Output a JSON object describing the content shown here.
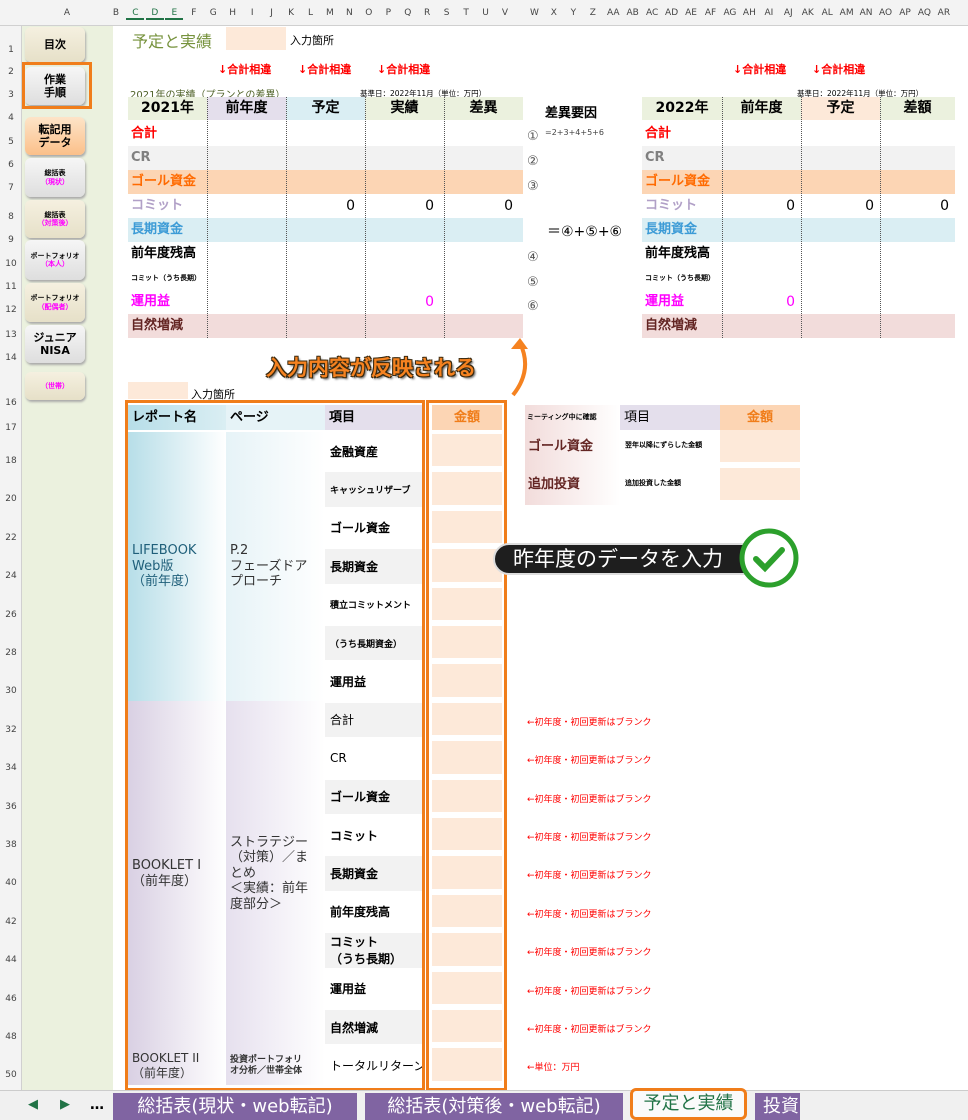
{
  "column_headers": [
    "A",
    "B",
    "C",
    "D",
    "E",
    "F",
    "G",
    "H",
    "I",
    "J",
    "K",
    "L",
    "M",
    "N",
    "O",
    "P",
    "Q",
    "R",
    "S",
    "T",
    "U",
    "V",
    "W",
    "X",
    "Y",
    "Z",
    "AA",
    "AB",
    "AC",
    "AD",
    "AE",
    "AF",
    "AG",
    "AH",
    "AI",
    "AJ",
    "AK",
    "AL",
    "AM",
    "AN",
    "AO",
    "AP",
    "AQ",
    "AR"
  ],
  "row_headers": [
    "1",
    "2",
    "3",
    "4",
    "5",
    "6",
    "7",
    "8",
    "9",
    "10",
    "11",
    "12",
    "13",
    "14",
    "16",
    "17",
    "18",
    "20",
    "22",
    "24",
    "26",
    "28",
    "30",
    "32",
    "34",
    "36",
    "38",
    "40",
    "42",
    "44",
    "46",
    "48",
    "50"
  ],
  "sidebar": [
    {
      "label": "目次",
      "style": "beige"
    },
    {
      "label": "作業\n手順",
      "style": "gray",
      "highlighted": true
    },
    {
      "label": "転記用\nデータ",
      "style": "orange"
    },
    {
      "label": "総括表",
      "sub": "（現状）",
      "style": "gray"
    },
    {
      "label": "総括表",
      "sub": "（対策後）",
      "style": "beige"
    },
    {
      "label": "ポートフォリオ",
      "sub": "（本人）",
      "style": "gray"
    },
    {
      "label": "ポートフォリオ",
      "sub": "（配偶者）",
      "style": "beige"
    },
    {
      "label": "ジュニア\nNISA",
      "style": "gray"
    },
    {
      "label": "",
      "sub": "（世帯）",
      "style": "beige"
    }
  ],
  "sheet": {
    "title": "予定と実績",
    "input_legend": "入力箇所",
    "warnings_left": [
      "↓合計相違",
      "↓合計相違",
      "↓合計相違"
    ],
    "warnings_right": [
      "↓合計相違",
      "↓合計相違"
    ],
    "subtitle_2021": "2021年の実績（プランとの差異）",
    "base_date_left": "基準日：2022年11月（単位：万円）",
    "base_date_right": "基準日：2022年11月（単位：万円）"
  },
  "table2021": {
    "headers": [
      "2021年",
      "前年度",
      "予定",
      "実績",
      "差異"
    ],
    "rows": [
      {
        "label": "合計",
        "color": "#ff0000",
        "bg": "#ffffff",
        "values": [
          "",
          "",
          "",
          ""
        ]
      },
      {
        "label": "CR",
        "color": "#808080",
        "bg": "#f2f2f2",
        "values": [
          "",
          "",
          "",
          ""
        ]
      },
      {
        "label": "ゴール資金",
        "color": "#ff6a00",
        "bg": "#fcd5b4",
        "values": [
          "",
          "",
          "",
          ""
        ]
      },
      {
        "label": "コミット",
        "color": "#b1a0c7",
        "bg": "#ffffff",
        "values": [
          "",
          "0",
          "0",
          "0"
        ]
      },
      {
        "label": "長期資金",
        "color": "#3c9bd6",
        "bg": "#daeef3",
        "values": [
          "",
          "",
          "",
          ""
        ]
      },
      {
        "label": "前年度残高",
        "color": "#000000",
        "bg": "#ffffff",
        "values": [
          "",
          "",
          "",
          ""
        ]
      },
      {
        "label": "コミット（うち長期）",
        "color": "#000000",
        "bg": "#ffffff",
        "small": true,
        "values": [
          "",
          "",
          "",
          ""
        ]
      },
      {
        "label": "運用益",
        "color": "#ff00ff",
        "bg": "#ffffff",
        "values": [
          "",
          "",
          "0",
          ""
        ]
      },
      {
        "label": "自然増減",
        "color": "#632523",
        "bg": "#f2dcdb",
        "values": [
          "",
          "",
          "",
          ""
        ]
      }
    ]
  },
  "factors": {
    "header": "差異要因",
    "markers": [
      "①",
      "②",
      "③",
      "④",
      "⑤",
      "⑥"
    ],
    "formula1": "=2+3+4+5+6",
    "formula2": "＝④+⑤+⑥"
  },
  "table2022": {
    "headers": [
      "2022年",
      "前年度",
      "予定",
      "差額"
    ],
    "rows": [
      {
        "label": "合計",
        "values": [
          "",
          "",
          ""
        ]
      },
      {
        "label": "CR",
        "values": [
          "",
          "",
          ""
        ]
      },
      {
        "label": "ゴール資金",
        "values": [
          "",
          "",
          ""
        ]
      },
      {
        "label": "コミット",
        "values": [
          "0",
          "0",
          "0"
        ]
      },
      {
        "label": "長期資金",
        "values": [
          "",
          "",
          ""
        ]
      },
      {
        "label": "前年度残高",
        "values": [
          "",
          "",
          ""
        ]
      },
      {
        "label": "コミット（うち長期）",
        "values": [
          "",
          "",
          ""
        ]
      },
      {
        "label": "運用益",
        "values": [
          "0",
          "",
          ""
        ]
      },
      {
        "label": "自然増減",
        "values": [
          "",
          "",
          ""
        ]
      }
    ]
  },
  "annotation_reflect": "入力内容が反映される",
  "annotation_input": "昨年度のデータを入力",
  "input_table": {
    "legend": "入力箇所",
    "headers": [
      "レポート名",
      "ページ",
      "項目",
      "金額"
    ],
    "groups": [
      {
        "report": "LIFEBOOK\nWeb版\n（前年度）",
        "page": "P.2\nフェーズドア\nプローチ",
        "rows": 7,
        "color": "#b7dee8"
      },
      {
        "report": "BOOKLET I\n（前年度）",
        "page": "ストラテジー\n（対策）／ま\nとめ\n＜実績：前年\n度部分＞",
        "rows": 9,
        "color": "#d9d0e3"
      },
      {
        "report": "BOOKLET II\n（前年度）",
        "page": "投資ポートフォリ\nオ分析／世帯全体",
        "rows": 1,
        "color": "#d9d0e3"
      }
    ],
    "items": [
      "金融資産",
      "キャッシュリザーブ",
      "ゴール資金",
      "長期資金",
      "積立コミットメント",
      "（うち長期資金）",
      "運用益",
      "合計",
      "CR",
      "ゴール資金",
      "コミット",
      "長期資金",
      "前年度残高",
      "コミット\n（うち長期）",
      "運用益",
      "自然増減",
      "トータルリターン"
    ],
    "amounts": [
      "",
      "",
      "",
      "",
      "",
      "",
      "",
      "",
      "",
      "",
      "",
      "",
      "",
      "",
      "",
      "",
      ""
    ],
    "notes": [
      "",
      "",
      "",
      "",
      "",
      "",
      "",
      "←初年度・初回更新はブランク",
      "←初年度・初回更新はブランク",
      "←初年度・初回更新はブランク",
      "←初年度・初回更新はブランク",
      "←初年度・初回更新はブランク",
      "←初年度・初回更新はブランク",
      "←初年度・初回更新はブランク",
      "←初年度・初回更新はブランク",
      "←初年度・初回更新はブランク",
      "←単位：万円"
    ]
  },
  "meeting_table": {
    "headers": [
      "ミーティング中に確認",
      "項目",
      "金額"
    ],
    "rows": [
      {
        "name": "ゴール資金",
        "item": "翌年以降にずらした金額",
        "amount": ""
      },
      {
        "name": "追加投資",
        "item": "追加投資した金額",
        "amount": ""
      }
    ]
  },
  "tabs": {
    "nav": [
      "◀",
      "▶",
      "…"
    ],
    "sheets": [
      {
        "label": "総括表(現状・web転記)",
        "active": false
      },
      {
        "label": "総括表(対策後・web転記)",
        "active": false
      },
      {
        "label": "予定と実績",
        "active": true
      },
      {
        "label": "投資",
        "active": false
      }
    ]
  },
  "colors": {
    "accent_orange": "#f07d1a",
    "tab_purple": "#8064a2",
    "input_peach": "#fde9d9",
    "title_olive": "#76923c"
  }
}
